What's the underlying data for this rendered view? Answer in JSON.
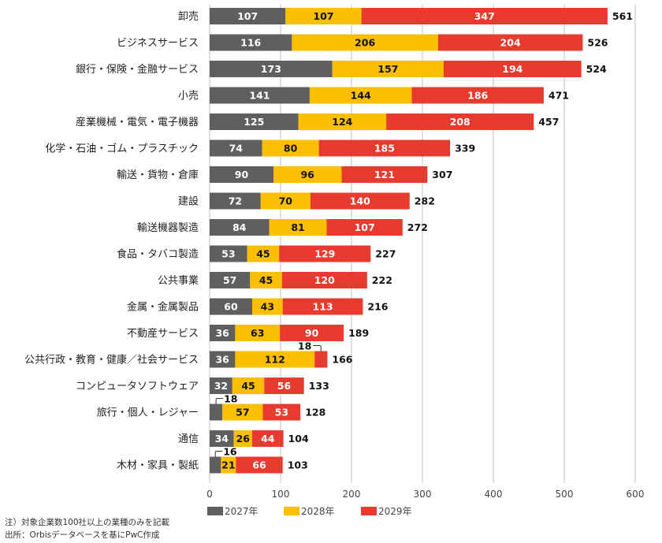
{
  "chart_data": {
    "type": "bar",
    "orientation": "horizontal",
    "stacked": true,
    "title": "",
    "xlabel": "",
    "ylabel": "",
    "xlim": [
      0,
      600
    ],
    "xticks": [
      0,
      100,
      200,
      300,
      400,
      500,
      600
    ],
    "grid": true,
    "legend_position": "bottom-left",
    "categories": [
      "卸売",
      "ビジネスサービス",
      "銀行・保険・金融サービス",
      "小売",
      "産業機械・電気・電子機器",
      "化学・石油・ゴム・プラスチック",
      "輸送・貨物・倉庫",
      "建設",
      "輸送機器製造",
      "食品・タバコ製造",
      "公共事業",
      "金属・金属製品",
      "不動産サービス",
      "公共行政・教育・健康／社会サービス",
      "コンピュータソフトウェア",
      "旅行・個人・レジャー",
      "通信",
      "木材・家具・製紙"
    ],
    "series": [
      {
        "name": "2027年",
        "color": "#5f5f5f",
        "label_color": "#ffffff",
        "values": [
          107,
          116,
          173,
          141,
          125,
          74,
          90,
          72,
          84,
          53,
          57,
          60,
          36,
          36,
          32,
          18,
          34,
          16
        ]
      },
      {
        "name": "2028年",
        "color": "#fbbf00",
        "label_color": "#111111",
        "values": [
          107,
          206,
          157,
          144,
          124,
          80,
          96,
          70,
          81,
          45,
          45,
          43,
          63,
          112,
          45,
          57,
          26,
          21
        ]
      },
      {
        "name": "2029年",
        "color": "#e63b2e",
        "label_color": "#ffffff",
        "values": [
          347,
          204,
          194,
          186,
          208,
          185,
          121,
          140,
          107,
          129,
          120,
          113,
          90,
          18,
          56,
          53,
          44,
          66
        ]
      }
    ],
    "totals": [
      561,
      526,
      524,
      471,
      457,
      339,
      307,
      282,
      272,
      227,
      222,
      216,
      189,
      166,
      133,
      128,
      104,
      103
    ],
    "callouts": [
      {
        "category_index": 13,
        "series_index": 2,
        "value": 18
      },
      {
        "category_index": 15,
        "series_index": 0,
        "value": 18
      },
      {
        "category_index": 17,
        "series_index": 0,
        "value": 16
      }
    ]
  },
  "notes": {
    "note": "注）対象企業数100社以上の業種のみを記載",
    "source": "出所：Orbisデータベースを基にPwC作成"
  }
}
